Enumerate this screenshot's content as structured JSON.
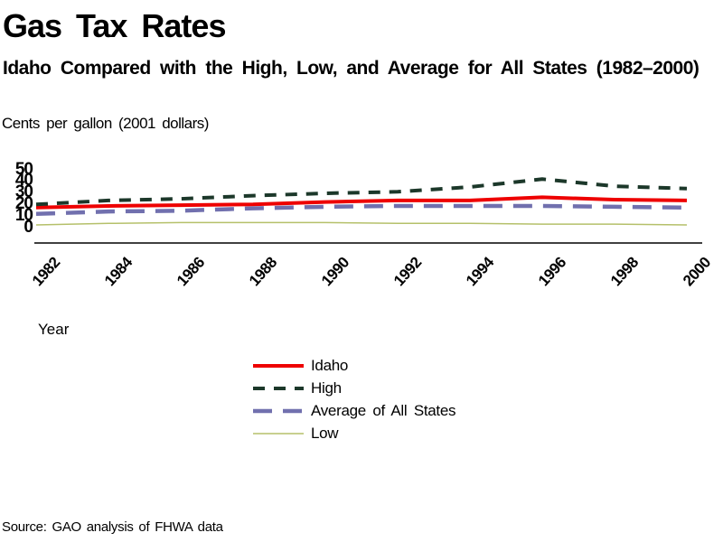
{
  "page": {
    "title": "Gas Tax Rates",
    "subtitle": "Idaho Compared with the High, Low, and Average for All States (1982–2000)",
    "source": "Source: GAO analysis of FHWA data"
  },
  "chart_data": {
    "type": "line",
    "title": "Gas Tax Rates",
    "subtitle": "Idaho Compared with the High, Low, and Average for All States (1982–2000)",
    "ylabel": "Cents per gallon (2001 dollars)",
    "xlabel": "Year",
    "ylim": [
      0,
      50
    ],
    "y_ticks": [
      "50",
      "40",
      "30",
      "20",
      "10",
      "0"
    ],
    "x_ticks": [
      "1982",
      "1984",
      "1986",
      "1988",
      "1990",
      "1992",
      "1994",
      "1996",
      "1998",
      "2000"
    ],
    "categories": [
      1982,
      1984,
      1986,
      1988,
      1990,
      1992,
      1994,
      1996,
      1998,
      2000
    ],
    "series": [
      {
        "name": "Idaho",
        "color": "#ee0000",
        "style": "solid",
        "width": 4,
        "values": [
          23,
          24,
          24.5,
          25,
          26.5,
          27.5,
          27.5,
          29.5,
          28,
          27.5
        ]
      },
      {
        "name": "High",
        "color": "#1c382a",
        "style": "dashed",
        "width": 4,
        "values": [
          25,
          27.5,
          28.5,
          30.5,
          32,
          33,
          36,
          41,
          36.5,
          35
        ]
      },
      {
        "name": "Average of All States",
        "color": "#7170ae",
        "style": "long-dash",
        "width": 4.5,
        "values": [
          19,
          20.5,
          21,
          22.5,
          23.5,
          24,
          24,
          24,
          23.5,
          23
        ]
      },
      {
        "name": "Low",
        "color": "#b5c06a",
        "style": "solid",
        "width": 1.5,
        "values": [
          12,
          13,
          13.5,
          13.5,
          13.5,
          13,
          13,
          12.5,
          12.5,
          12
        ]
      }
    ],
    "grid": false,
    "legend_position": "bottom-center",
    "axis_color": "#000000",
    "background_color": "#ffffff",
    "source": "Source: GAO analysis of FHWA data"
  }
}
